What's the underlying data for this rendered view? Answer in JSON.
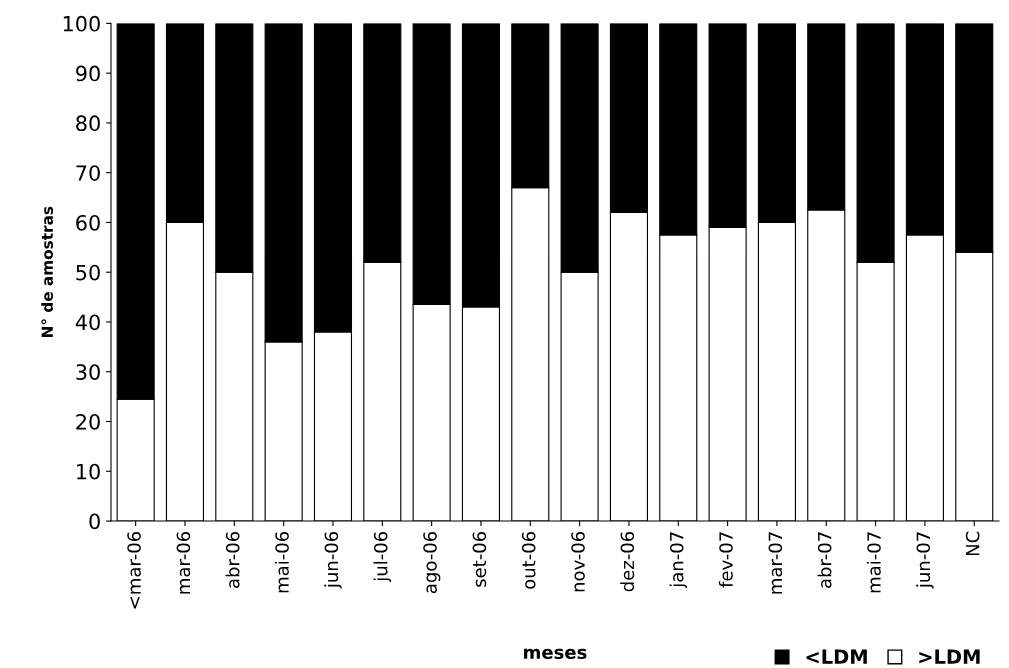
{
  "chart_data": {
    "type": "bar",
    "stacked": true,
    "xlabel": "meses",
    "ylabel": "N° de amostras",
    "categories": [
      "<mar-06",
      "mar-06",
      "abr-06",
      "mai-06",
      "jun-06",
      "jul-06",
      "ago-06",
      "set-06",
      "out-06",
      "nov-06",
      "dez-06",
      "jan-07",
      "fev-07",
      "mar-07",
      "abr-07",
      "mai-07",
      "jun-07",
      "NC"
    ],
    "series": [
      {
        "name": ">LDM",
        "color": "#ffffff",
        "values": [
          24.5,
          60,
          50,
          36,
          38,
          52,
          43.5,
          43,
          67,
          50,
          62,
          57.5,
          59,
          60,
          62.5,
          52,
          57.5,
          54
        ]
      },
      {
        "name": "<LDM",
        "color": "#000000",
        "values": [
          75.5,
          40,
          50,
          64,
          62,
          48,
          56.5,
          57,
          33,
          50,
          38,
          42.5,
          41,
          40,
          37.5,
          48,
          42.5,
          46
        ]
      }
    ],
    "ylim": [
      0,
      100
    ],
    "yticks": [
      0,
      10,
      20,
      30,
      40,
      50,
      60,
      70,
      80,
      90,
      100
    ],
    "grid": false,
    "legend": "bottom right"
  }
}
